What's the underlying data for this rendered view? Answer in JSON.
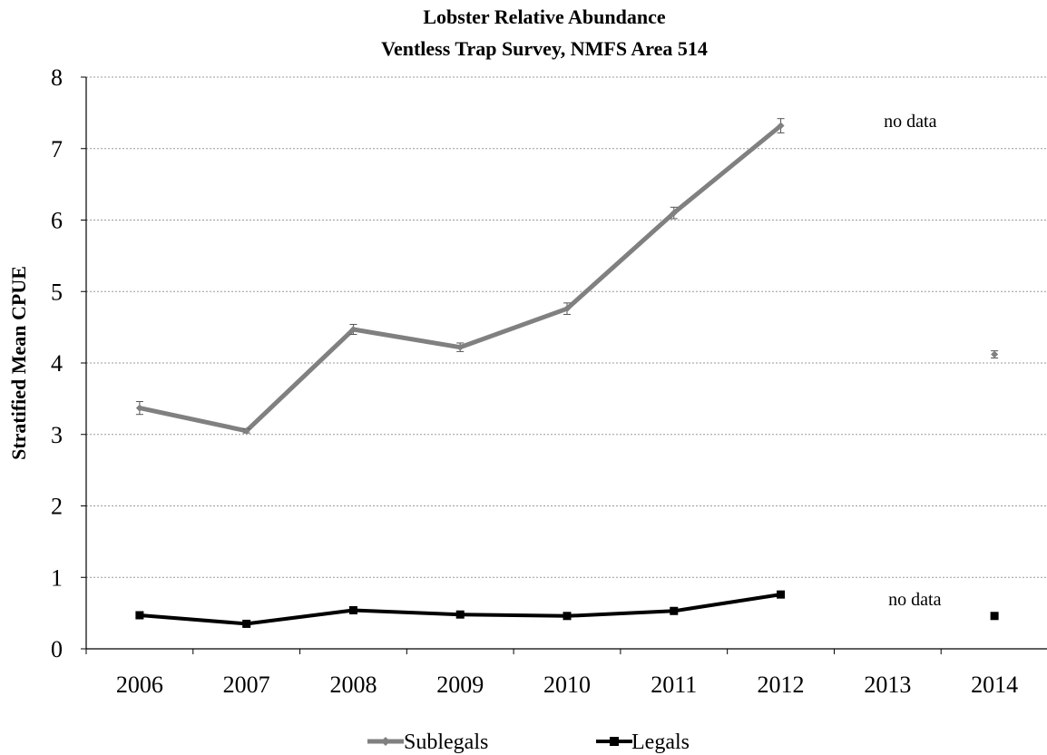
{
  "chart_data": {
    "type": "line",
    "title_lines": [
      "Lobster Relative Abundance",
      "Ventless Trap Survey, NMFS Area 514"
    ],
    "ylabel": "Stratified Mean CPUE",
    "xlabel": "",
    "categories": [
      "2006",
      "2007",
      "2008",
      "2009",
      "2010",
      "2011",
      "2012",
      "2013",
      "2014"
    ],
    "ylim": [
      0,
      8
    ],
    "yticks": [
      "0",
      "1",
      "2",
      "3",
      "4",
      "5",
      "6",
      "7",
      "8"
    ],
    "grid": "horizontal dotted",
    "legend_position": "bottom",
    "series": [
      {
        "name": "Sublegals",
        "color": "#808080",
        "marker": "diamond",
        "values": [
          3.37,
          3.05,
          4.47,
          4.22,
          4.76,
          6.1,
          7.32,
          null,
          4.12
        ],
        "error": [
          0.09,
          0.03,
          0.07,
          0.06,
          0.08,
          0.08,
          0.1,
          null,
          0.05
        ]
      },
      {
        "name": "Legals",
        "color": "#000000",
        "marker": "square",
        "values": [
          0.47,
          0.35,
          0.54,
          0.48,
          0.46,
          0.53,
          0.76,
          null,
          0.46
        ]
      }
    ],
    "annotations": [
      {
        "text": "no data",
        "series": "Sublegals",
        "category": "2013"
      },
      {
        "text": "no data",
        "series": "Legals",
        "category": "2013"
      }
    ]
  }
}
